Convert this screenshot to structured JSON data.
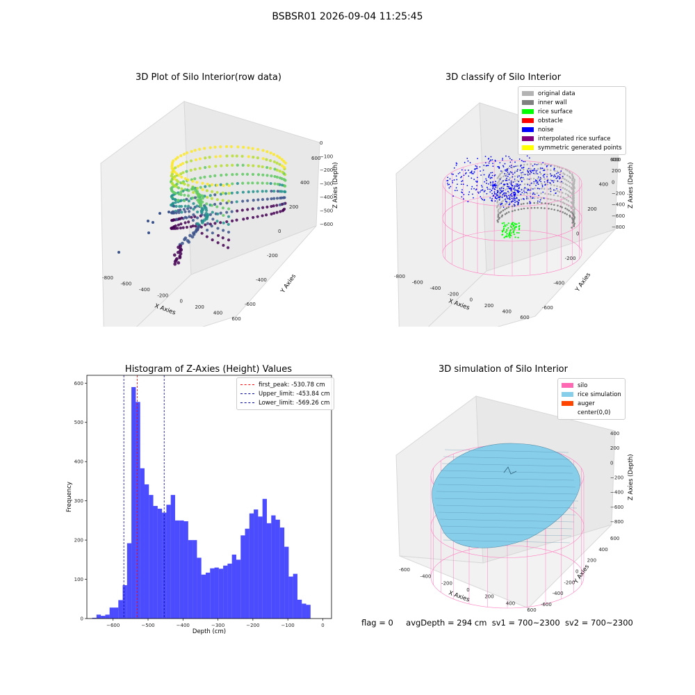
{
  "suptitle": "BSBSR01 2026-09-04 11:25:45",
  "footer": {
    "flag": "flag = 0",
    "avg_depth": "avgDepth = 294 cm",
    "sv1": "sv1 = 700~2300",
    "sv2": "sv2 = 700~2300"
  },
  "panels": {
    "raw": {
      "title": "3D Plot of Silo Interior(row data)",
      "xlabel": "X Axies",
      "ylabel": "Y Axies",
      "zlabel": "Z Axies (Depth)",
      "xticks": [
        "-800",
        "-600",
        "-400",
        "-200",
        "0",
        "200",
        "400",
        "600"
      ],
      "yticks": [
        "-600",
        "-400",
        "-200",
        "0",
        "200",
        "400",
        "600"
      ],
      "zticks": [
        "0",
        "−100",
        "−200",
        "−300",
        "−400",
        "−500",
        "−600"
      ]
    },
    "classify": {
      "title": "3D classify of Silo Interior",
      "xlabel": "X Axies",
      "ylabel": "Y Axies",
      "zlabel": "Z Axies (Depth)",
      "xticks": [
        "-800",
        "-600",
        "-400",
        "-200",
        "0",
        "200",
        "400",
        "600"
      ],
      "yticks": [
        "-600",
        "-400",
        "-200",
        "0",
        "200",
        "400",
        "600"
      ],
      "zticks": [
        "400",
        "200",
        "0",
        "−200",
        "−400",
        "−600",
        "−800"
      ],
      "legend": [
        {
          "label": "original data",
          "color": "#b3b3b3"
        },
        {
          "label": "inner wall",
          "color": "#808080"
        },
        {
          "label": "rice surface",
          "color": "#00ff00"
        },
        {
          "label": "obstacle",
          "color": "#ff0000"
        },
        {
          "label": "noise",
          "color": "#0000ff"
        },
        {
          "label": "interpolated rice surface",
          "color": "#800080"
        },
        {
          "label": "symmetric generated points",
          "color": "#ffff00"
        }
      ]
    },
    "simulation": {
      "title": "3D simulation of Silo Interior",
      "xlabel": "X Axies",
      "ylabel": "Y Axies",
      "zlabel": "Z Axies (Depth)",
      "xticks": [
        "-600",
        "-400",
        "-200",
        "0",
        "200",
        "400",
        "600"
      ],
      "yticks": [
        "-600",
        "-400",
        "-200",
        "0",
        "200",
        "400",
        "600"
      ],
      "zticks": [
        "400",
        "200",
        "0",
        "−200",
        "−400",
        "−600",
        "−800"
      ],
      "legend": [
        {
          "label": "silo",
          "color": "#ff69b4"
        },
        {
          "label": "rice simulation",
          "color": "#87ceeb"
        },
        {
          "label": "auger",
          "color": "#ff4500"
        },
        {
          "label": "center(0,0)",
          "color": ""
        }
      ]
    }
  },
  "chart_data": {
    "type": "bar",
    "title": "Histogram of Z-Axies (Height) Values",
    "xlabel": "Depth (cm)",
    "ylabel": "Frequency",
    "xlim": [
      -675,
      25
    ],
    "ylim": [
      0,
      620
    ],
    "xticks": [
      -600,
      -500,
      -400,
      -300,
      -200,
      -100,
      0
    ],
    "yticks": [
      0,
      100,
      200,
      300,
      400,
      500,
      600
    ],
    "bar_color": "#0000ff",
    "bin_start": -660,
    "bin_width": 12.5,
    "values": [
      2,
      10,
      7,
      10,
      28,
      28,
      47,
      85,
      192,
      590,
      552,
      383,
      342,
      315,
      287,
      280,
      270,
      290,
      315,
      250,
      250,
      248,
      200,
      200,
      155,
      112,
      117,
      128,
      130,
      127,
      135,
      140,
      163,
      150,
      212,
      229,
      268,
      278,
      260,
      305,
      243,
      263,
      252,
      232,
      183,
      107,
      114,
      48,
      38,
      35
    ],
    "vlines": [
      {
        "label": "first_peak: -530.78 cm",
        "x": -530.78,
        "color": "#ff0000"
      },
      {
        "label": "Upper_limit: -453.84 cm",
        "x": -453.84,
        "color": "#0000a0"
      },
      {
        "label": "Lower_limit: -569.26 cm",
        "x": -569.26,
        "color": "#0000a0"
      }
    ]
  }
}
